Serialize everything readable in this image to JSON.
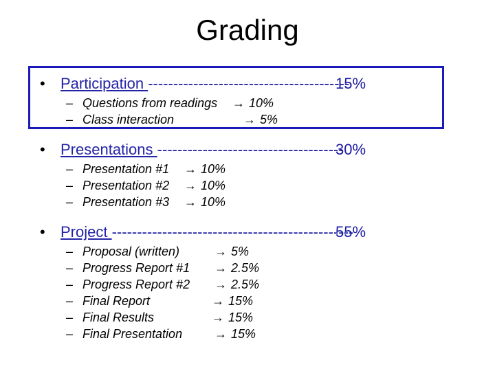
{
  "title": "Grading",
  "sections": [
    {
      "label": "Participation ",
      "dashes": "----------------------------------------",
      "percent": "15%",
      "items": [
        {
          "dash": "–",
          "text": "Questions from readings",
          "arrow": "→",
          "value": "10%"
        },
        {
          "dash": "–",
          "text": "Class interaction",
          "arrow": "→",
          "value": "5%"
        }
      ]
    },
    {
      "label": "Presentations ",
      "dashes": "-------------------------------------",
      "percent": "30%",
      "items": [
        {
          "dash": "–",
          "text": "Presentation #1",
          "arrow": "→",
          "value": "10%"
        },
        {
          "dash": "–",
          "text": "Presentation #2",
          "arrow": "→",
          "value": "10%"
        },
        {
          "dash": "–",
          "text": "Presentation #3",
          "arrow": "→",
          "value": "10%"
        }
      ]
    },
    {
      "label": "Project ",
      "dashes": "------------------------------------------------",
      "percent": "55%",
      "items": [
        {
          "dash": "–",
          "text": "Proposal (written)",
          "arrow": "→",
          "value": "5%"
        },
        {
          "dash": "–",
          "text": "Progress Report #1",
          "arrow": "→",
          "value": "2.5%"
        },
        {
          "dash": "–",
          "text": "Progress Report #2",
          "arrow": "→",
          "value": "2.5%"
        },
        {
          "dash": "–",
          "text": "Final Report",
          "arrow": "→",
          "value": "15%"
        },
        {
          "dash": "–",
          "text": "Final Results",
          "arrow": "→",
          "value": "15%"
        },
        {
          "dash": "–",
          "text": "Final Presentation",
          "arrow": "→",
          "value": "15%"
        }
      ]
    }
  ]
}
